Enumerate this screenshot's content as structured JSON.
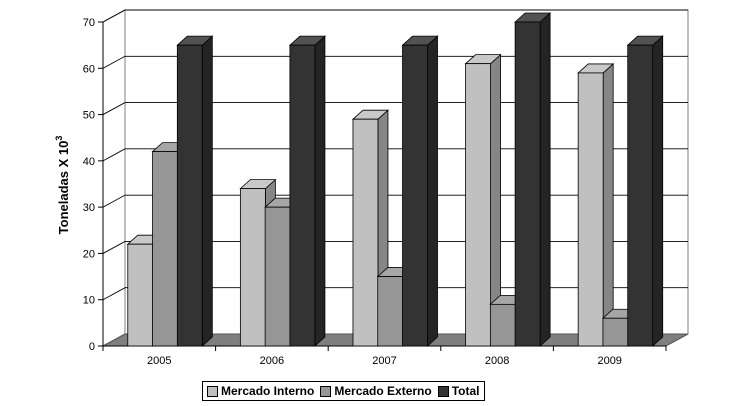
{
  "chart_data": {
    "type": "bar",
    "title": "",
    "xlabel": "",
    "ylabel": "Toneladas X 10",
    "ylabel_sup": "3",
    "ylim": [
      0,
      70
    ],
    "yticks": [
      "0",
      "10",
      "20",
      "30",
      "40",
      "50",
      "60",
      "70"
    ],
    "categories": [
      "2005",
      "2006",
      "2007",
      "2008",
      "2009"
    ],
    "series": [
      {
        "name": "Mercado Interno",
        "color": "#c0c0c0",
        "values": [
          22,
          34,
          49,
          61,
          59
        ]
      },
      {
        "name": "Mercado Externo",
        "color": "#969696",
        "values": [
          42,
          30,
          15,
          9,
          6
        ]
      },
      {
        "name": "Total",
        "color": "#333333",
        "values": [
          65,
          65,
          65,
          70,
          65
        ]
      }
    ],
    "grid": true,
    "legend": "bottom"
  }
}
